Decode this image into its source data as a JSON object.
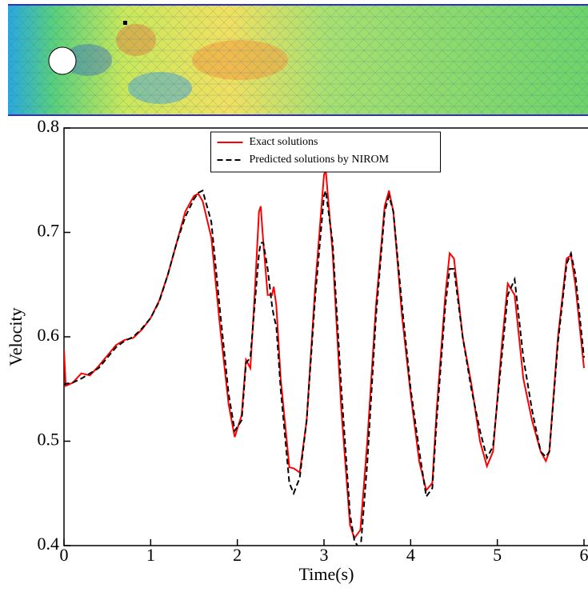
{
  "chart_data": {
    "type": "line",
    "x_label": "Time(s)",
    "y_label": "Velocity",
    "x": [
      0,
      0.02,
      0.1,
      0.2,
      0.3,
      0.4,
      0.5,
      0.6,
      0.7,
      0.8,
      0.9,
      1.0,
      1.1,
      1.2,
      1.3,
      1.4,
      1.5,
      1.55,
      1.6,
      1.7,
      1.8,
      1.9,
      1.97,
      2.05,
      2.1,
      2.15,
      2.2,
      2.25,
      2.27,
      2.3,
      2.35,
      2.4,
      2.42,
      2.45,
      2.5,
      2.6,
      2.65,
      2.72,
      2.8,
      2.9,
      3.0,
      3.02,
      3.1,
      3.2,
      3.3,
      3.35,
      3.42,
      3.5,
      3.6,
      3.7,
      3.75,
      3.8,
      3.9,
      4.0,
      4.1,
      4.18,
      4.25,
      4.3,
      4.4,
      4.45,
      4.5,
      4.6,
      4.7,
      4.8,
      4.88,
      4.95,
      5.05,
      5.12,
      5.2,
      5.3,
      5.4,
      5.5,
      5.56,
      5.6,
      5.7,
      5.8,
      5.85,
      5.9,
      6.0
    ],
    "series": [
      {
        "name": "Exact solutions",
        "color": "#ff0000",
        "dash": false,
        "values": [
          0.588,
          0.553,
          0.556,
          0.565,
          0.563,
          0.572,
          0.582,
          0.592,
          0.597,
          0.599,
          0.607,
          0.618,
          0.635,
          0.66,
          0.69,
          0.72,
          0.735,
          0.737,
          0.73,
          0.695,
          0.61,
          0.535,
          0.504,
          0.525,
          0.578,
          0.57,
          0.64,
          0.72,
          0.725,
          0.69,
          0.64,
          0.64,
          0.648,
          0.63,
          0.56,
          0.475,
          0.474,
          0.47,
          0.52,
          0.65,
          0.755,
          0.76,
          0.68,
          0.53,
          0.42,
          0.407,
          0.415,
          0.5,
          0.63,
          0.725,
          0.74,
          0.72,
          0.62,
          0.545,
          0.48,
          0.453,
          0.46,
          0.53,
          0.64,
          0.68,
          0.675,
          0.6,
          0.555,
          0.5,
          0.476,
          0.49,
          0.59,
          0.651,
          0.64,
          0.56,
          0.52,
          0.49,
          0.481,
          0.49,
          0.6,
          0.675,
          0.678,
          0.65,
          0.57
        ]
      },
      {
        "name": "Predicted solutions by NIROM",
        "color": "#000000",
        "dash": true,
        "values": [
          0.554,
          0.555,
          0.556,
          0.56,
          0.565,
          0.57,
          0.58,
          0.59,
          0.596,
          0.6,
          0.608,
          0.618,
          0.634,
          0.66,
          0.69,
          0.715,
          0.732,
          0.738,
          0.74,
          0.71,
          0.625,
          0.545,
          0.51,
          0.52,
          0.575,
          0.58,
          0.63,
          0.68,
          0.69,
          0.69,
          0.665,
          0.63,
          0.62,
          0.61,
          0.55,
          0.46,
          0.45,
          0.465,
          0.52,
          0.64,
          0.735,
          0.74,
          0.69,
          0.55,
          0.43,
          0.405,
          0.395,
          0.48,
          0.62,
          0.72,
          0.735,
          0.72,
          0.63,
          0.55,
          0.49,
          0.447,
          0.455,
          0.52,
          0.63,
          0.665,
          0.665,
          0.6,
          0.55,
          0.51,
          0.484,
          0.495,
          0.58,
          0.64,
          0.655,
          0.58,
          0.53,
          0.49,
          0.485,
          0.49,
          0.595,
          0.67,
          0.68,
          0.66,
          0.58
        ]
      }
    ],
    "xlim": [
      0,
      6
    ],
    "xticks": [
      0,
      1,
      2,
      3,
      4,
      5,
      6
    ],
    "ylim": [
      0.4,
      0.8
    ],
    "yticks": [
      0.4,
      0.5,
      0.6,
      0.7,
      0.8
    ],
    "legend": "upper center",
    "grid": false
  }
}
